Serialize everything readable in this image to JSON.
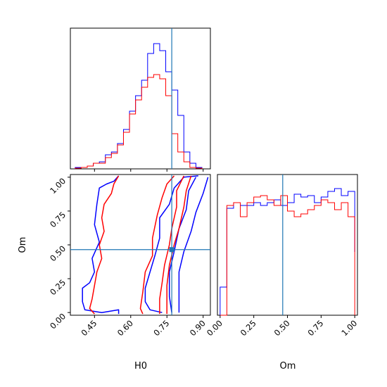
{
  "chart_data": {
    "type": "corner",
    "parameters": [
      "H0",
      "Om"
    ],
    "truths": {
      "H0": 0.77,
      "Om": 0.465
    },
    "truth_color": "#1f77b4",
    "series": [
      {
        "color": "#0000ff"
      },
      {
        "color": "#ff0000"
      }
    ],
    "panels": [
      {
        "id": "hist_H0",
        "type": "step",
        "xlim": [
          0.35,
          0.93
        ],
        "x_ticks": [
          0.45,
          0.6,
          0.75,
          0.9
        ],
        "bin_edges": [
          0.37,
          0.395,
          0.42,
          0.445,
          0.47,
          0.495,
          0.52,
          0.545,
          0.57,
          0.595,
          0.62,
          0.645,
          0.67,
          0.695,
          0.72,
          0.745,
          0.77,
          0.795,
          0.82,
          0.845,
          0.87,
          0.895
        ],
        "ylim": [
          0,
          1
        ],
        "counts": [
          [
            0.01,
            0.01,
            0.02,
            0.04,
            0.05,
            0.1,
            0.12,
            0.18,
            0.28,
            0.41,
            0.52,
            0.63,
            0.82,
            0.89,
            0.84,
            0.69,
            0.56,
            0.38,
            0.12,
            0.04,
            0.01
          ],
          [
            0.005,
            0.01,
            0.02,
            0.04,
            0.04,
            0.08,
            0.11,
            0.17,
            0.26,
            0.39,
            0.49,
            0.58,
            0.65,
            0.67,
            0.64,
            0.52,
            0.25,
            0.12,
            0.05,
            0.01,
            0.005
          ]
        ]
      },
      {
        "id": "contour_H0_Om",
        "type": "contour",
        "xlabel": "H0",
        "ylabel": "Om",
        "xlim": [
          0.35,
          0.93
        ],
        "ylim": [
          -0.02,
          1.02
        ],
        "x_ticks": [
          0.45,
          0.6,
          0.75,
          0.9
        ],
        "x_tick_labels": [
          "0.45",
          "0.60",
          "0.75",
          "0.90"
        ],
        "y_ticks": [
          0.0,
          0.25,
          0.5,
          0.75,
          1.0
        ],
        "y_tick_labels": [
          "0.00",
          "0.25",
          "0.50",
          "0.75",
          "1.00"
        ],
        "contours": [
          {
            "series": 0,
            "points": [
              [
                0.87,
                1.0
              ],
              [
                0.84,
                0.9
              ],
              [
                0.83,
                0.76
              ],
              [
                0.8,
                0.62
              ],
              [
                0.78,
                0.45
              ],
              [
                0.76,
                0.3
              ],
              [
                0.76,
                0.12
              ],
              [
                0.77,
                0.0
              ]
            ]
          },
          {
            "series": 0,
            "points": [
              [
                0.92,
                1.0
              ],
              [
                0.9,
                0.88
              ],
              [
                0.87,
                0.74
              ],
              [
                0.85,
                0.6
              ],
              [
                0.82,
                0.45
              ],
              [
                0.8,
                0.3
              ],
              [
                0.8,
                0.12
              ],
              [
                0.8,
                0.0
              ]
            ]
          },
          {
            "series": 0,
            "points": [
              [
                0.88,
                1.01
              ],
              [
                0.82,
                1.0
              ],
              [
                0.78,
                0.92
              ],
              [
                0.76,
                0.8
              ],
              [
                0.72,
                0.7
              ],
              [
                0.72,
                0.55
              ],
              [
                0.7,
                0.42
              ],
              [
                0.68,
                0.3
              ],
              [
                0.66,
                0.18
              ],
              [
                0.66,
                0.08
              ],
              [
                0.68,
                0.02
              ],
              [
                0.73,
                0.0
              ]
            ]
          },
          {
            "series": 0,
            "points": [
              [
                0.55,
                1.01
              ],
              [
                0.53,
                0.97
              ],
              [
                0.5,
                0.95
              ],
              [
                0.47,
                0.92
              ],
              [
                0.46,
                0.8
              ],
              [
                0.45,
                0.65
              ],
              [
                0.47,
                0.52
              ],
              [
                0.44,
                0.4
              ],
              [
                0.45,
                0.3
              ],
              [
                0.43,
                0.22
              ],
              [
                0.4,
                0.18
              ],
              [
                0.4,
                0.08
              ],
              [
                0.41,
                0.02
              ],
              [
                0.48,
                0.0
              ],
              [
                0.55,
                0.02
              ],
              [
                0.55,
                -0.01
              ]
            ]
          },
          {
            "series": 1,
            "points": [
              [
                0.85,
                1.01
              ],
              [
                0.83,
                0.9
              ],
              [
                0.82,
                0.78
              ],
              [
                0.8,
                0.62
              ],
              [
                0.78,
                0.5
              ],
              [
                0.76,
                0.35
              ],
              [
                0.75,
                0.2
              ],
              [
                0.75,
                0.05
              ],
              [
                0.75,
                -0.01
              ]
            ]
          },
          {
            "series": 1,
            "points": [
              [
                0.82,
                1.01
              ],
              [
                0.79,
                0.9
              ],
              [
                0.79,
                0.78
              ],
              [
                0.77,
                0.62
              ],
              [
                0.76,
                0.5
              ],
              [
                0.74,
                0.35
              ],
              [
                0.73,
                0.22
              ],
              [
                0.72,
                0.1
              ],
              [
                0.72,
                -0.01
              ]
            ]
          },
          {
            "series": 1,
            "points": [
              [
                0.78,
                1.01
              ],
              [
                0.75,
                0.95
              ],
              [
                0.73,
                0.85
              ],
              [
                0.71,
                0.72
              ],
              [
                0.69,
                0.55
              ],
              [
                0.69,
                0.42
              ],
              [
                0.66,
                0.3
              ],
              [
                0.65,
                0.15
              ],
              [
                0.64,
                0.03
              ],
              [
                0.65,
                -0.01
              ]
            ]
          },
          {
            "series": 1,
            "points": [
              [
                0.55,
                1.01
              ],
              [
                0.53,
                0.95
              ],
              [
                0.52,
                0.88
              ],
              [
                0.49,
                0.8
              ],
              [
                0.48,
                0.7
              ],
              [
                0.49,
                0.6
              ],
              [
                0.47,
                0.5
              ],
              [
                0.48,
                0.4
              ],
              [
                0.46,
                0.3
              ],
              [
                0.45,
                0.2
              ],
              [
                0.44,
                0.1
              ],
              [
                0.43,
                0.03
              ],
              [
                0.45,
                -0.01
              ]
            ]
          }
        ]
      },
      {
        "id": "hist_Om",
        "type": "step",
        "xlabel": "Om",
        "xlim": [
          -0.02,
          1.02
        ],
        "x_ticks": [
          0.0,
          0.25,
          0.5,
          0.75,
          1.0
        ],
        "x_tick_labels": [
          "0.00",
          "0.25",
          "0.50",
          "0.75",
          "1.00"
        ],
        "bin_edges": [
          0.0,
          0.05,
          0.1,
          0.15,
          0.2,
          0.25,
          0.3,
          0.35,
          0.4,
          0.45,
          0.5,
          0.55,
          0.6,
          0.65,
          0.7,
          0.75,
          0.8,
          0.85,
          0.9,
          0.95,
          1.0
        ],
        "ylim": [
          0,
          1
        ],
        "counts": [
          [
            0.2,
            0.76,
            0.8,
            0.78,
            0.78,
            0.8,
            0.78,
            0.8,
            0.82,
            0.78,
            0.8,
            0.86,
            0.84,
            0.85,
            0.8,
            0.84,
            0.88,
            0.9,
            0.85,
            0.88,
            0.45
          ],
          [
            0.0,
            0.78,
            0.8,
            0.7,
            0.8,
            0.84,
            0.85,
            0.82,
            0.78,
            0.85,
            0.74,
            0.7,
            0.72,
            0.75,
            0.78,
            0.82,
            0.8,
            0.75,
            0.8,
            0.7,
            0.0
          ]
        ]
      }
    ]
  }
}
